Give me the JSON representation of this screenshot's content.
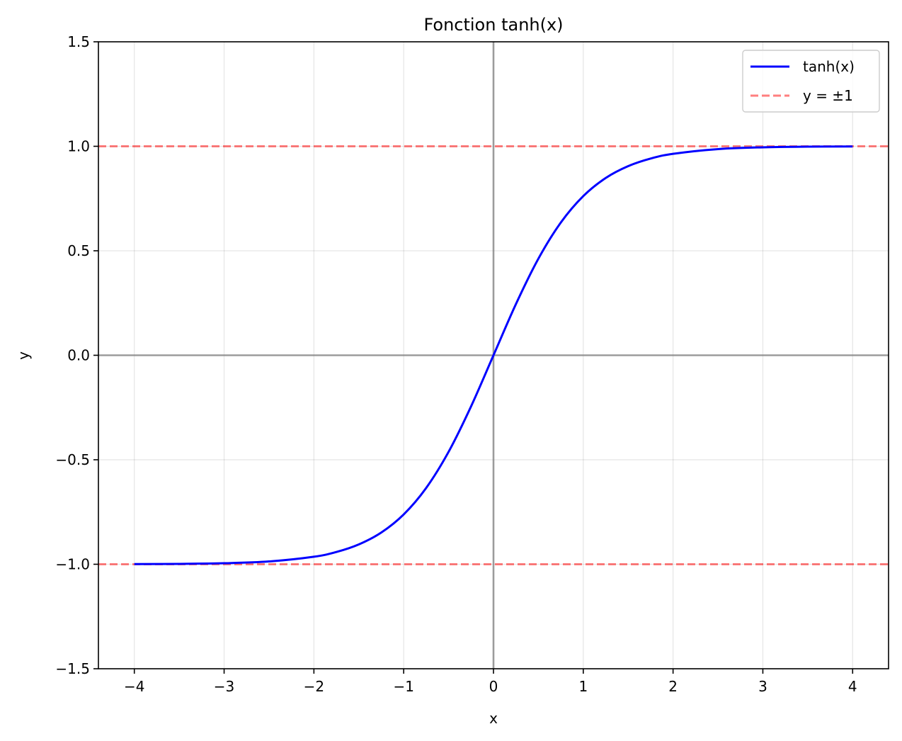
{
  "chart_data": {
    "type": "line",
    "title": "Fonction tanh(x)",
    "xlabel": "x",
    "ylabel": "y",
    "xlim": [
      -4.4,
      4.4
    ],
    "ylim": [
      -1.5,
      1.5
    ],
    "x_ticks": [
      -4,
      -3,
      -2,
      -1,
      0,
      1,
      2,
      3,
      4
    ],
    "x_tick_labels": [
      "−4",
      "−3",
      "−2",
      "−1",
      "0",
      "1",
      "2",
      "3",
      "4"
    ],
    "y_ticks": [
      -1.5,
      -1.0,
      -0.5,
      0.0,
      0.5,
      1.0,
      1.5
    ],
    "y_tick_labels": [
      "−1.5",
      "−1.0",
      "−0.5",
      "0.0",
      "0.5",
      "1.0",
      "1.5"
    ],
    "grid": true,
    "legend_position": "top-right",
    "series": [
      {
        "name": "tanh(x)",
        "color": "#0000ff",
        "style": "solid",
        "x": [
          -4.0,
          -3.5,
          -3.0,
          -2.5,
          -2.0,
          -1.75,
          -1.5,
          -1.25,
          -1.0,
          -0.75,
          -0.5,
          -0.25,
          0.0,
          0.25,
          0.5,
          0.75,
          1.0,
          1.25,
          1.5,
          1.75,
          2.0,
          2.5,
          3.0,
          3.5,
          4.0
        ],
        "y": [
          -0.9993,
          -0.9982,
          -0.9951,
          -0.9866,
          -0.964,
          -0.9414,
          -0.9051,
          -0.8483,
          -0.7616,
          -0.6351,
          -0.4621,
          -0.2449,
          0.0,
          0.2449,
          0.4621,
          0.6351,
          0.7616,
          0.8483,
          0.9051,
          0.9414,
          0.964,
          0.9866,
          0.9951,
          0.9982,
          0.9993
        ]
      },
      {
        "name": "y = ±1",
        "color": "#ff0000",
        "opacity": 0.5,
        "style": "dashed",
        "hlines": [
          1,
          -1
        ]
      }
    ],
    "reference_lines": {
      "color": "#808080",
      "x0": 0,
      "y0": 0
    }
  }
}
